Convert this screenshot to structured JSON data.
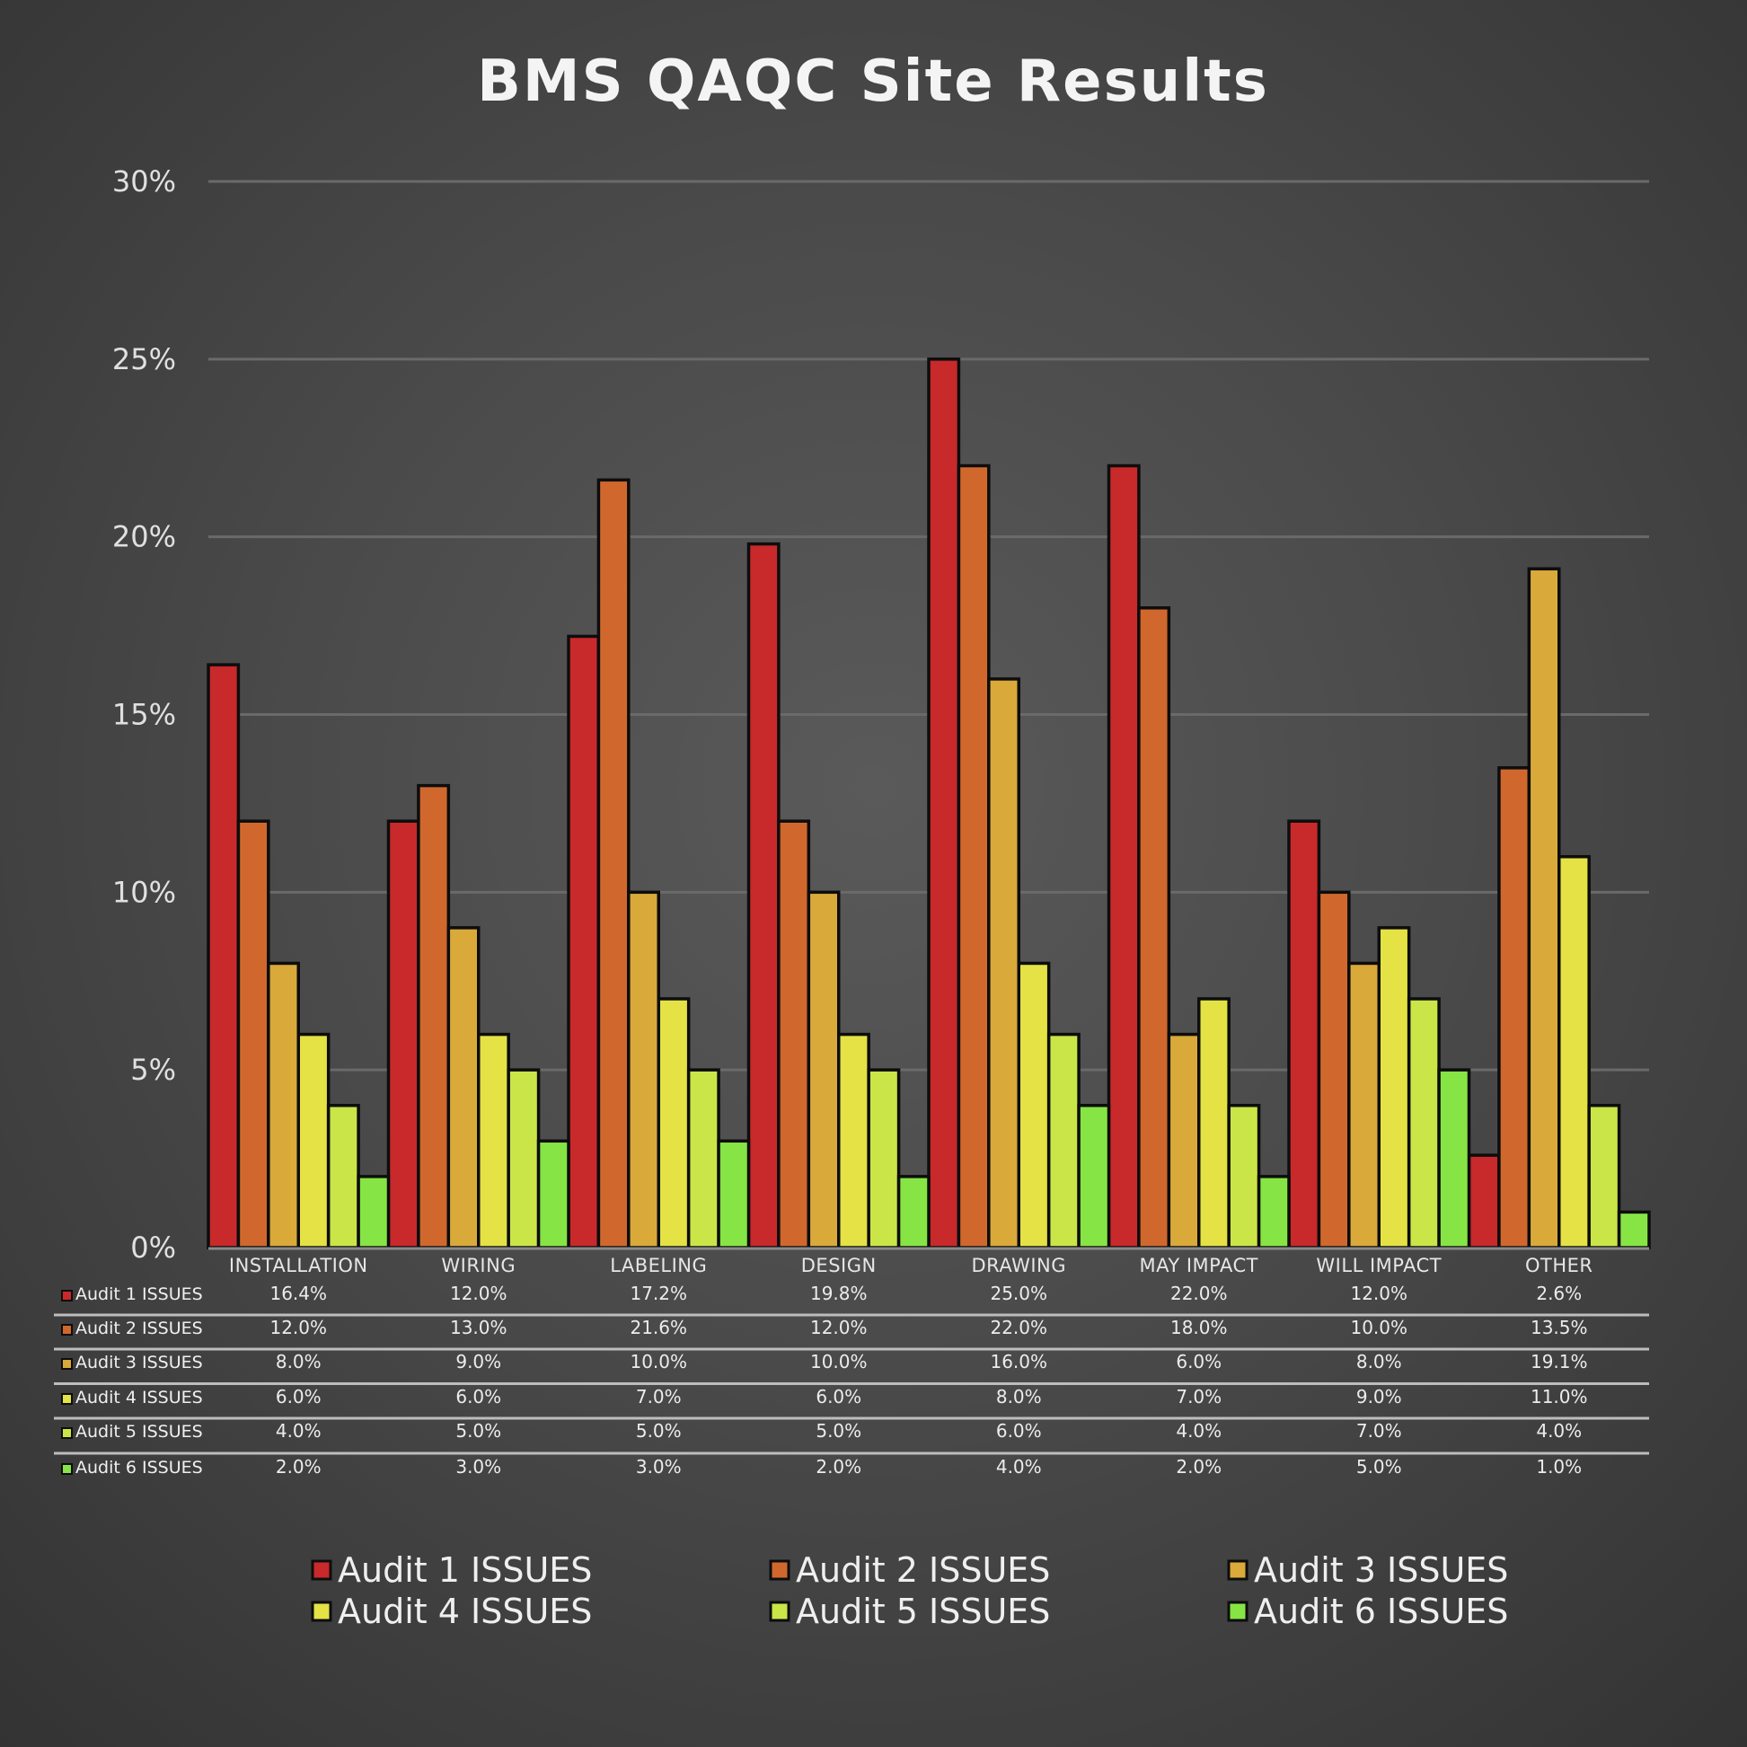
{
  "chart_data": {
    "type": "bar",
    "title": "BMS QAQC Site Results",
    "categories": [
      "INSTALLATION",
      "WIRING",
      "LABELING",
      "DESIGN",
      "DRAWING",
      "MAY IMPACT",
      "WILL IMPACT",
      "OTHER"
    ],
    "ylim": [
      0,
      30
    ],
    "yticks": [
      "0%",
      "5%",
      "10%",
      "15%",
      "20%",
      "25%",
      "30%"
    ],
    "ytick_values": [
      0,
      5,
      10,
      15,
      20,
      25,
      30
    ],
    "grid": true,
    "legend_position": "bottom",
    "data_table": true,
    "series": [
      {
        "name": "Audit 1 ISSUES",
        "color": "#c8292b",
        "values": [
          16.4,
          12.0,
          17.2,
          19.8,
          25.0,
          22.0,
          12.0,
          2.6
        ],
        "labels": [
          "16.4%",
          "12.0%",
          "17.2%",
          "19.8%",
          "25.0%",
          "22.0%",
          "12.0%",
          "2.6%"
        ]
      },
      {
        "name": "Audit 2 ISSUES",
        "color": "#d0682e",
        "values": [
          12.0,
          13.0,
          21.6,
          12.0,
          22.0,
          18.0,
          10.0,
          13.5
        ],
        "labels": [
          "12.0%",
          "13.0%",
          "21.6%",
          "12.0%",
          "22.0%",
          "18.0%",
          "10.0%",
          "13.5%"
        ]
      },
      {
        "name": "Audit 3 ISSUES",
        "color": "#d9a93a",
        "values": [
          8.0,
          9.0,
          10.0,
          10.0,
          16.0,
          6.0,
          8.0,
          19.1
        ],
        "labels": [
          "8.0%",
          "9.0%",
          "10.0%",
          "10.0%",
          "16.0%",
          "6.0%",
          "8.0%",
          "19.1%"
        ]
      },
      {
        "name": "Audit 4 ISSUES",
        "color": "#e4e244",
        "values": [
          6.0,
          6.0,
          7.0,
          6.0,
          8.0,
          7.0,
          9.0,
          11.0
        ],
        "labels": [
          "6.0%",
          "6.0%",
          "7.0%",
          "6.0%",
          "8.0%",
          "7.0%",
          "9.0%",
          "11.0%"
        ]
      },
      {
        "name": "Audit 5 ISSUES",
        "color": "#cae547",
        "values": [
          4.0,
          5.0,
          5.0,
          5.0,
          6.0,
          4.0,
          7.0,
          4.0
        ],
        "labels": [
          "4.0%",
          "5.0%",
          "5.0%",
          "5.0%",
          "6.0%",
          "4.0%",
          "7.0%",
          "4.0%"
        ]
      },
      {
        "name": "Audit 6 ISSUES",
        "color": "#86e545",
        "values": [
          2.0,
          3.0,
          3.0,
          2.0,
          4.0,
          2.0,
          5.0,
          1.0
        ],
        "labels": [
          "2.0%",
          "3.0%",
          "3.0%",
          "2.0%",
          "4.0%",
          "2.0%",
          "5.0%",
          "1.0%"
        ]
      }
    ]
  }
}
